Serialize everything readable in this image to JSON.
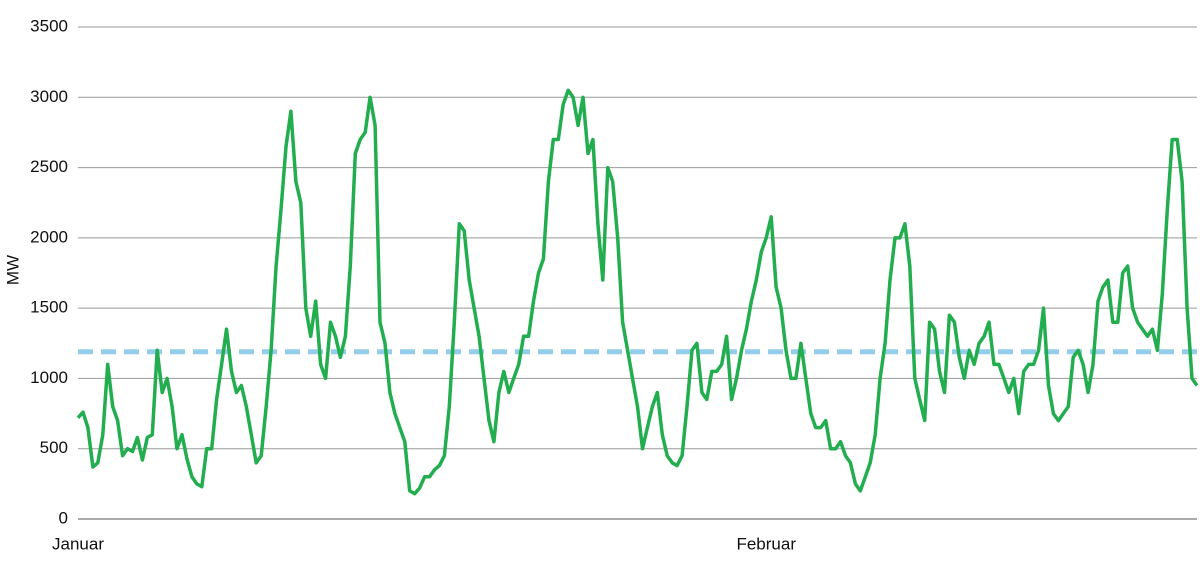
{
  "chart_data": {
    "type": "line",
    "ylabel": "MW",
    "categories": [
      "Januar",
      null,
      null,
      null,
      null,
      null,
      null,
      null,
      null,
      null,
      null,
      null,
      null,
      null,
      null,
      null,
      null,
      null,
      null,
      null,
      null,
      null,
      null,
      null,
      null,
      null,
      null,
      null,
      null,
      null,
      null,
      null,
      null,
      null,
      null,
      null,
      null,
      null,
      null,
      null,
      null,
      null,
      null,
      null,
      null,
      null,
      null,
      null,
      null,
      null,
      null,
      null,
      null,
      null,
      null,
      null,
      null,
      null,
      null,
      null,
      null,
      null,
      null,
      null,
      null,
      null,
      null,
      null,
      null,
      null,
      null,
      null,
      null,
      null,
      null,
      null,
      null,
      null,
      null,
      null,
      null,
      null,
      null,
      null,
      null,
      null,
      null,
      null,
      null,
      null,
      null,
      null,
      null,
      null,
      null,
      null,
      null,
      null,
      null,
      null,
      null,
      null,
      null,
      null,
      null,
      null,
      null,
      null,
      null,
      null,
      null,
      null,
      null,
      null,
      null,
      null,
      null,
      null,
      null,
      null,
      null,
      null,
      null,
      null,
      null,
      null,
      null,
      null,
      null,
      null,
      null,
      null,
      null,
      null,
      null,
      null,
      null,
      null,
      null,
      "Februar",
      null,
      null,
      null,
      null,
      null,
      null,
      null,
      null,
      null,
      null,
      null,
      null,
      null,
      null,
      null,
      null,
      null,
      null,
      null,
      null,
      null,
      null,
      null,
      null,
      null,
      null,
      null,
      null,
      null,
      null,
      null,
      null,
      null,
      null,
      null,
      null,
      null,
      null,
      null,
      null,
      null,
      null,
      null,
      null,
      null,
      null,
      null,
      null,
      null,
      null,
      null,
      null,
      null,
      null,
      null,
      null,
      null,
      null,
      null,
      null,
      null,
      null,
      null,
      null,
      null,
      null,
      null,
      null,
      null,
      null,
      null,
      null,
      null,
      null,
      null,
      null,
      null,
      null,
      null,
      null,
      null,
      null,
      null,
      null,
      null,
      null,
      null
    ],
    "series": [
      {
        "color": "#22ad4f",
        "values": [
          720,
          760,
          650,
          370,
          400,
          600,
          1100,
          800,
          700,
          450,
          500,
          480,
          580,
          420,
          580,
          600,
          1200,
          900,
          1000,
          800,
          500,
          600,
          430,
          300,
          250,
          230,
          500,
          500,
          850,
          1100,
          1350,
          1050,
          900,
          950,
          800,
          600,
          400,
          450,
          800,
          1200,
          1800,
          2200,
          2650,
          2900,
          2400,
          2250,
          1500,
          1300,
          1550,
          1100,
          1000,
          1400,
          1300,
          1150,
          1300,
          1800,
          2600,
          2700,
          2750,
          3000,
          2800,
          1400,
          1250,
          900,
          750,
          650,
          550,
          200,
          180,
          220,
          300,
          300,
          350,
          380,
          450,
          800,
          1400,
          2100,
          2050,
          1700,
          1500,
          1300,
          1000,
          700,
          550,
          900,
          1050,
          900,
          1000,
          1100,
          1300,
          1300,
          1550,
          1750,
          1850,
          2400,
          2700,
          2700,
          2950,
          3050,
          3000,
          2800,
          3000,
          2600,
          2700,
          2100,
          1700,
          2500,
          2400,
          2000,
          1400,
          1200,
          1000,
          800,
          500,
          650,
          800,
          900,
          600,
          450,
          400,
          380,
          450,
          800,
          1200,
          1250,
          900,
          850,
          1050,
          1050,
          1100,
          1300,
          850,
          1000,
          1200,
          1350,
          1550,
          1700,
          1900,
          2000,
          2150,
          1650,
          1500,
          1200,
          1000,
          1000,
          1250,
          1000,
          750,
          650,
          650,
          700,
          500,
          500,
          550,
          450,
          400,
          250,
          200,
          300,
          400,
          600,
          1000,
          1250,
          1700,
          2000,
          2000,
          2100,
          1800,
          1000,
          850,
          700,
          1400,
          1350,
          1050,
          900,
          1450,
          1400,
          1150,
          1000,
          1200,
          1100,
          1250,
          1300,
          1400,
          1100,
          1100,
          1000,
          900,
          1000,
          750,
          1050,
          1100,
          1100,
          1200,
          1500,
          950,
          750,
          700,
          750,
          800,
          1150,
          1200,
          1100,
          900,
          1100,
          1550,
          1650,
          1700,
          1400,
          1400,
          1750,
          1800,
          1500,
          1400,
          1350,
          1300,
          1350,
          1200,
          1600,
          2200,
          2700,
          2700,
          2400,
          1500,
          1000,
          950
        ]
      }
    ],
    "reference_line": {
      "value": 1190,
      "color": "#93cdea"
    },
    "ylim": [
      0,
      3500
    ],
    "yticks": [
      0,
      500,
      1000,
      1500,
      2000,
      2500,
      3000,
      3500
    ],
    "grid": true
  }
}
